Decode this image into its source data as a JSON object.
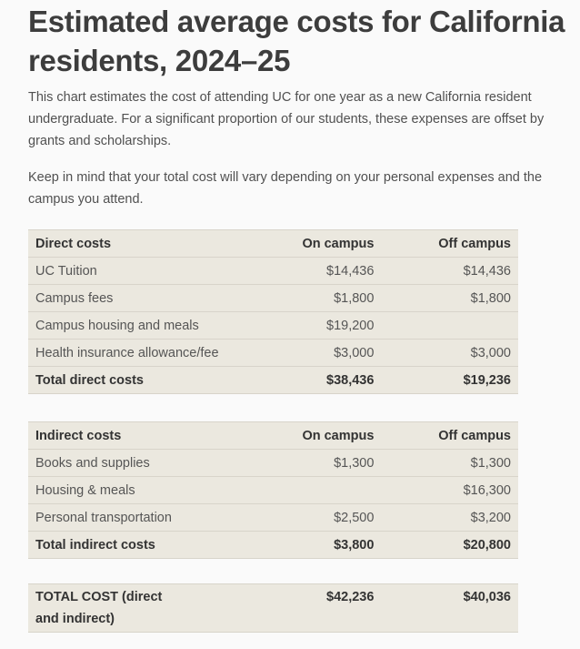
{
  "title": "Estimated average costs for California residents, 2024–25",
  "intro": "This chart estimates the cost of attending UC for one year as a new California resident undergraduate. For a significant proportion of our students, these expenses are offset by grants and scholarships.",
  "note": "Keep in mind that your total cost will vary depending on your personal expenses and the campus you attend.",
  "direct": {
    "headers": [
      "Direct costs",
      "On campus",
      "Off campus"
    ],
    "rows": [
      [
        "UC Tuition",
        "$14,436",
        "$14,436"
      ],
      [
        "Campus fees",
        "$1,800",
        "$1,800"
      ],
      [
        "Campus housing and meals",
        "$19,200",
        ""
      ],
      [
        "Health insurance allowance/fee",
        "$3,000",
        "$3,000"
      ]
    ],
    "total": [
      "Total direct costs",
      "$38,436",
      "$19,236"
    ]
  },
  "indirect": {
    "headers": [
      "Indirect costs",
      "On campus",
      "Off campus"
    ],
    "rows": [
      [
        "Books and supplies",
        "$1,300",
        "$1,300"
      ],
      [
        "Housing & meals",
        "",
        "$16,300"
      ],
      [
        "Personal transportation",
        "$2,500",
        "$3,200"
      ]
    ],
    "total": [
      "Total indirect costs",
      "$3,800",
      "$20,800"
    ]
  },
  "grand_total": [
    "TOTAL COST (direct and indirect)",
    "$42,236",
    "$40,036"
  ]
}
